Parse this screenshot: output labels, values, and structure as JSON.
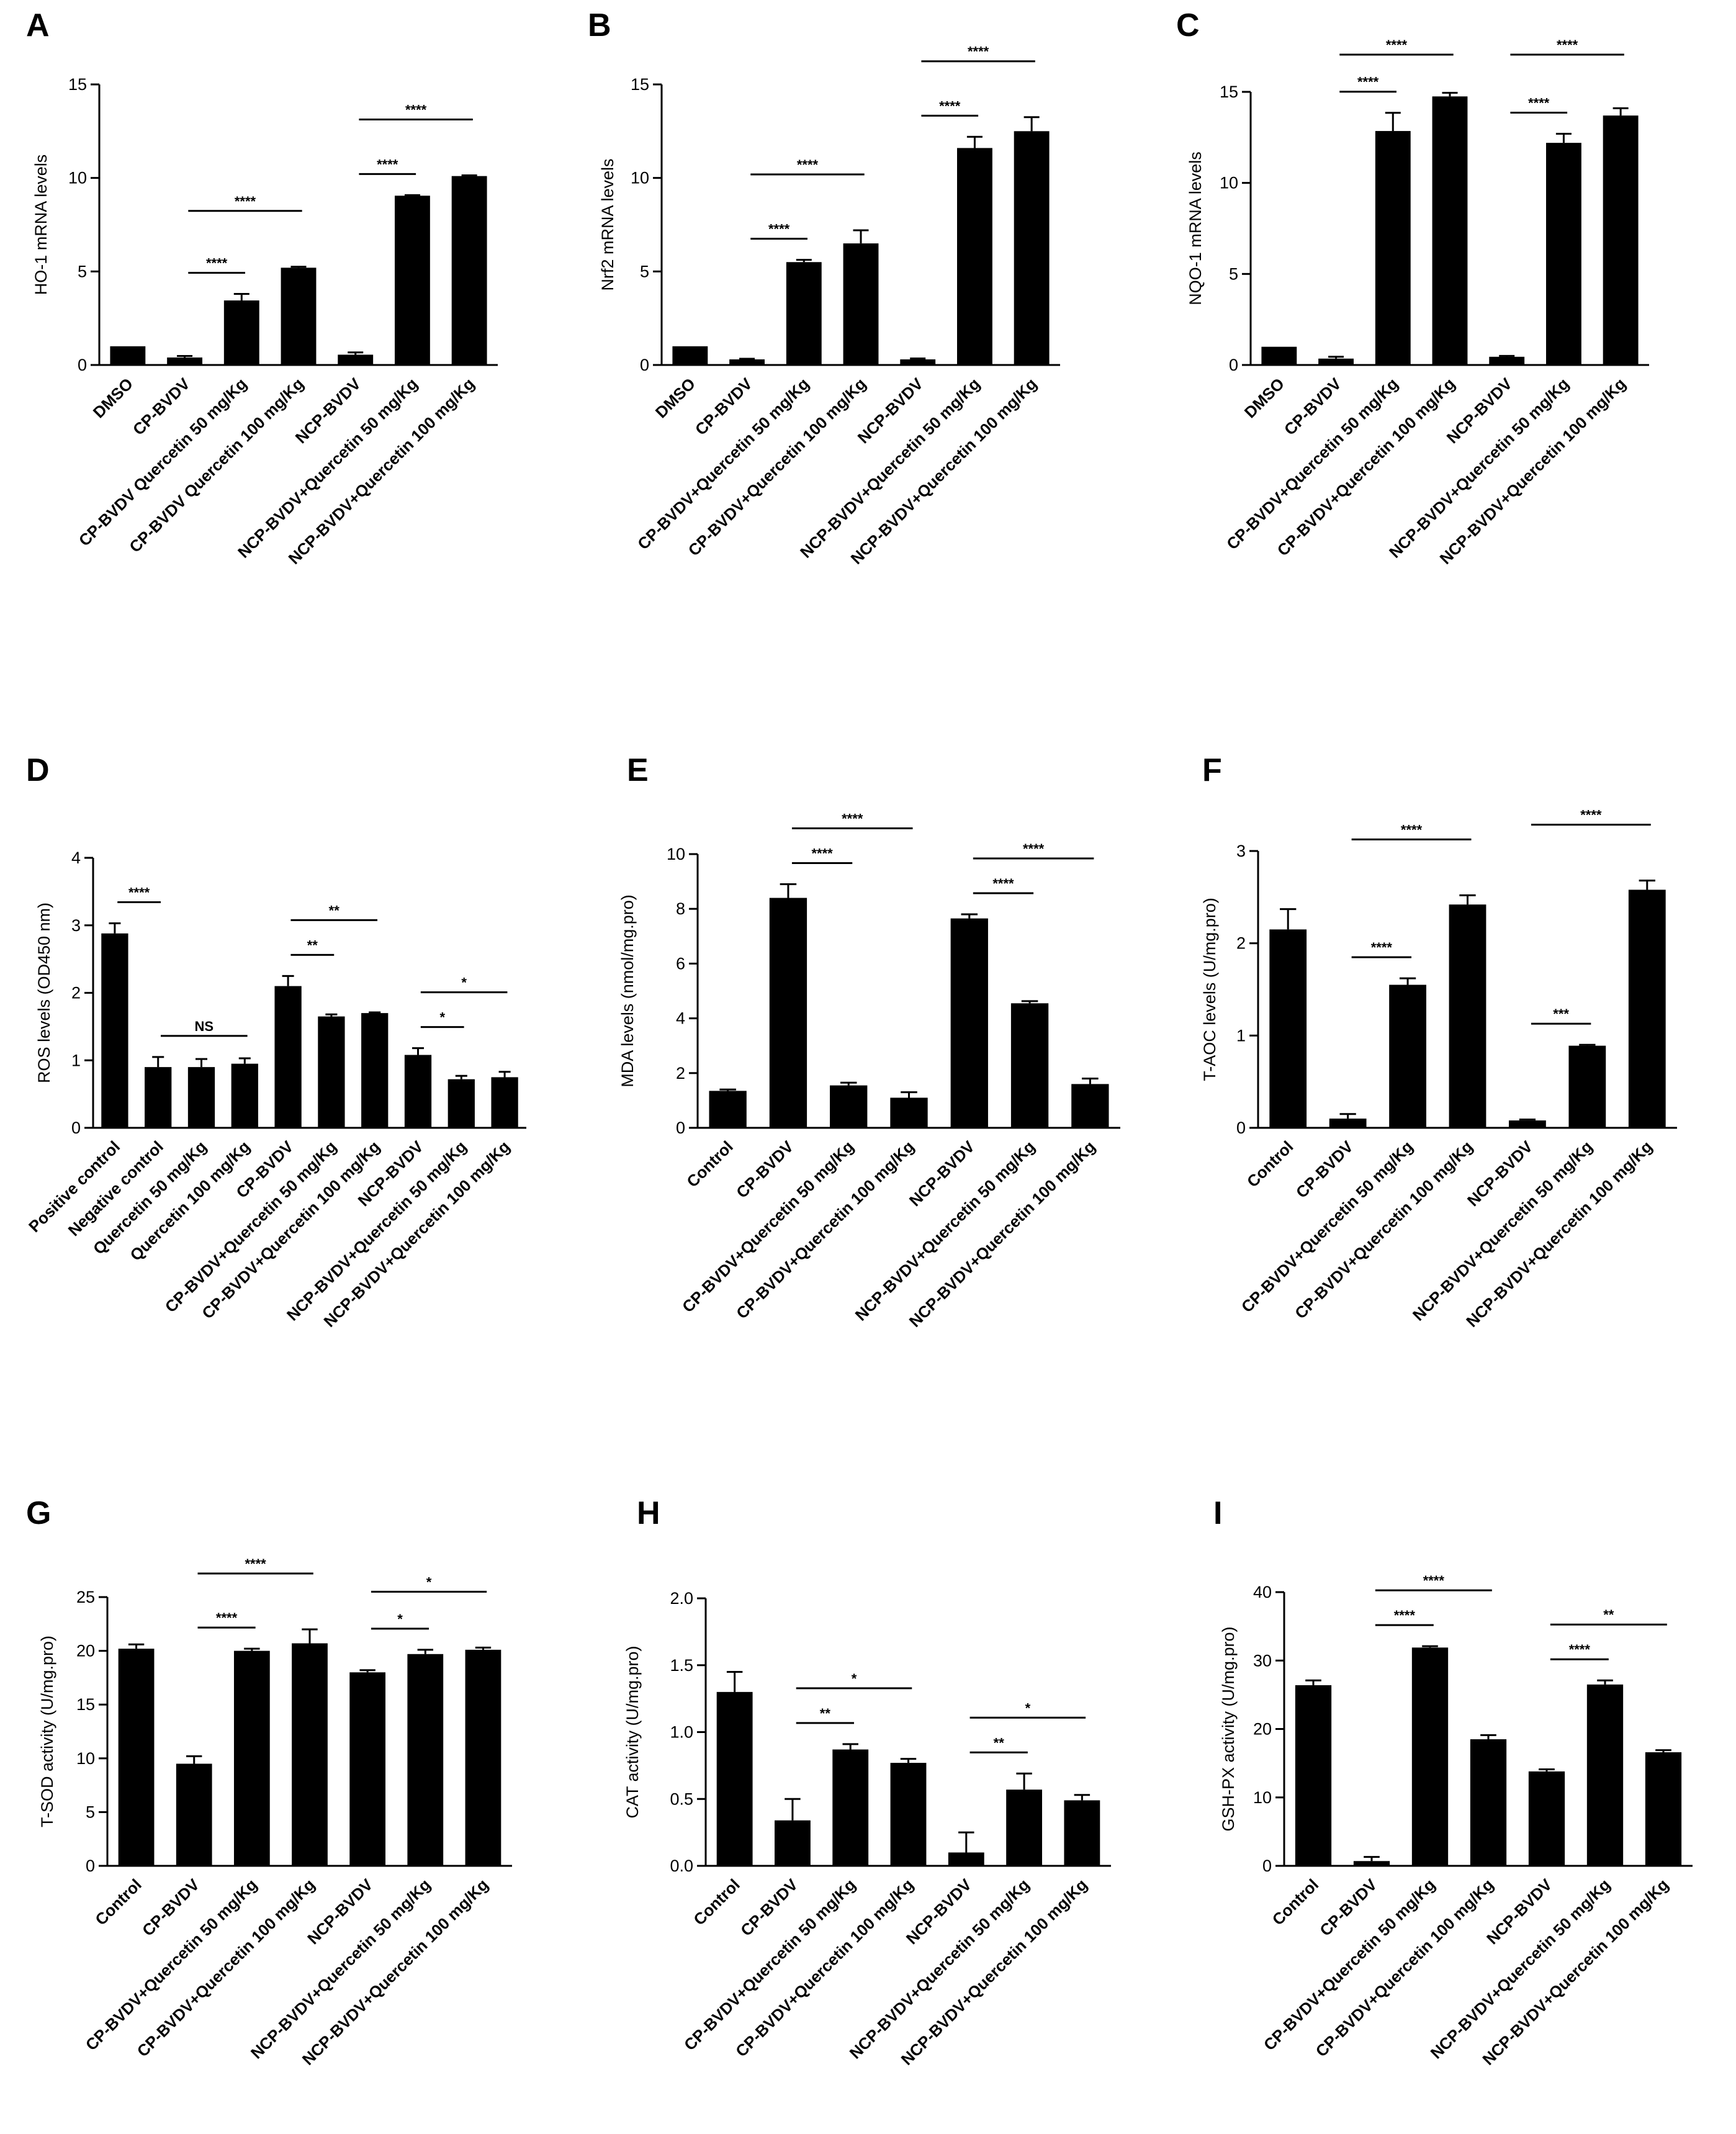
{
  "figure": {
    "panels": [
      {
        "letter": "A"
      },
      {
        "letter": "B"
      },
      {
        "letter": "C"
      },
      {
        "letter": "D"
      },
      {
        "letter": "E"
      },
      {
        "letter": "F"
      },
      {
        "letter": "G"
      },
      {
        "letter": "H"
      },
      {
        "letter": "I"
      }
    ]
  },
  "chart_data": [
    {
      "type": "bar",
      "panel": "A",
      "ylabel": "HO-1 mRNA levels",
      "ylim": [
        0,
        15
      ],
      "yticks": [
        0,
        5,
        10,
        15
      ],
      "categories": [
        "DMSO",
        "CP-BVDV",
        "CP-BVDV Quercetin 50 mg/Kg",
        "CP-BVDV Quercetin 100 mg/Kg",
        "NCP-BVDV",
        "NCP-BVDV+Quercetin 50 mg/Kg",
        "NCP-BVDV+Quercetin 100 mg/Kg"
      ],
      "values": [
        1.0,
        0.4,
        3.45,
        5.2,
        0.55,
        9.05,
        10.1
      ],
      "errors": [
        0.0,
        0.08,
        0.35,
        0.05,
        0.12,
        0.03,
        0.04
      ],
      "significance": [
        {
          "from": 1,
          "to": 2,
          "label": "****"
        },
        {
          "from": 1,
          "to": 3,
          "label": "****"
        },
        {
          "from": 4,
          "to": 5,
          "label": "****"
        },
        {
          "from": 4,
          "to": 6,
          "label": "****"
        }
      ]
    },
    {
      "type": "bar",
      "panel": "B",
      "ylabel": "Nrf2 mRNA levels",
      "ylim": [
        0,
        15
      ],
      "yticks": [
        0,
        5,
        10,
        15
      ],
      "categories": [
        "DMSO",
        "CP-BVDV",
        "CP-BVDV+Quercetin 50 mg/Kg",
        "CP-BVDV+Quercetin 100 mg/Kg",
        "NCP-BVDV",
        "NCP-BVDV+Quercetin 50 mg/Kg",
        "NCP-BVDV+Quercetin 100 mg/Kg"
      ],
      "values": [
        1.0,
        0.3,
        5.5,
        6.5,
        0.3,
        11.6,
        12.5
      ],
      "errors": [
        0.0,
        0.03,
        0.12,
        0.7,
        0.05,
        0.6,
        0.75
      ],
      "significance": [
        {
          "from": 1,
          "to": 2,
          "label": "****"
        },
        {
          "from": 1,
          "to": 3,
          "label": "****"
        },
        {
          "from": 4,
          "to": 5,
          "label": "****"
        },
        {
          "from": 4,
          "to": 6,
          "label": "****"
        }
      ]
    },
    {
      "type": "bar",
      "panel": "C",
      "ylabel": "NQO-1 mRNA levels",
      "ylim": [
        0,
        15
      ],
      "yticks": [
        0,
        5,
        10,
        15
      ],
      "categories": [
        "DMSO",
        "CP-BVDV",
        "CP-BVDV+Quercetin 50 mg/Kg",
        "CP-BVDV+Quercetin 100 mg/Kg",
        "NCP-BVDV",
        "NCP-BVDV+Quercetin 50 mg/Kg",
        "NCP-BVDV+Quercetin 100 mg/Kg"
      ],
      "values": [
        1.0,
        0.35,
        12.85,
        14.75,
        0.45,
        12.2,
        13.7
      ],
      "errors": [
        0.0,
        0.1,
        1.0,
        0.2,
        0.05,
        0.5,
        0.4
      ],
      "significance": [
        {
          "from": 1,
          "to": 2,
          "label": "****"
        },
        {
          "from": 1,
          "to": 3,
          "label": "****"
        },
        {
          "from": 4,
          "to": 5,
          "label": "****"
        },
        {
          "from": 4,
          "to": 6,
          "label": "****"
        }
      ]
    },
    {
      "type": "bar",
      "panel": "D",
      "ylabel": "ROS levels (OD450 nm)",
      "ylim": [
        0,
        4
      ],
      "yticks": [
        0,
        1,
        2,
        3,
        4
      ],
      "categories": [
        "Positive control",
        "Negative control",
        "Quercetin 50 mg/Kg",
        "Quercetin 100 mg/Kg",
        "CP-BVDV",
        "CP-BVDV+Quercetin 50 mg/Kg",
        "CP-BVDV+Quercetin 100 mg/Kg",
        "NCP-BVDV",
        "NCP-BVDV+Quercetin 50 mg/Kg",
        "NCP-BVDV+Quercetin 100 mg/Kg"
      ],
      "values": [
        2.88,
        0.9,
        0.9,
        0.95,
        2.1,
        1.65,
        1.7,
        1.08,
        0.72,
        0.75
      ],
      "errors": [
        0.15,
        0.15,
        0.12,
        0.08,
        0.15,
        0.03,
        0.01,
        0.1,
        0.05,
        0.08
      ],
      "significance": [
        {
          "from": 0,
          "to": 1,
          "label": "****"
        },
        {
          "from": 1,
          "to": 3,
          "label": "NS"
        },
        {
          "from": 4,
          "to": 5,
          "label": "**"
        },
        {
          "from": 4,
          "to": 6,
          "label": "**"
        },
        {
          "from": 7,
          "to": 8,
          "label": "*"
        },
        {
          "from": 7,
          "to": 9,
          "label": "*"
        }
      ]
    },
    {
      "type": "bar",
      "panel": "E",
      "ylabel": "MDA levels (nmol/mg.pro)",
      "ylim": [
        0,
        10
      ],
      "yticks": [
        0,
        2,
        4,
        6,
        8,
        10
      ],
      "categories": [
        "Control",
        "CP-BVDV",
        "CP-BVDV+Quercetin 50 mg/Kg",
        "CP-BVDV+Quercetin 100 mg/Kg",
        "NCP-BVDV",
        "NCP-BVDV+Quercetin 50 mg/Kg",
        "NCP-BVDV+Quercetin 100 mg/Kg"
      ],
      "values": [
        1.35,
        8.4,
        1.55,
        1.1,
        7.65,
        4.55,
        1.6
      ],
      "errors": [
        0.05,
        0.5,
        0.1,
        0.2,
        0.15,
        0.08,
        0.2
      ],
      "significance": [
        {
          "from": 1,
          "to": 2,
          "label": "****"
        },
        {
          "from": 1,
          "to": 3,
          "label": "****"
        },
        {
          "from": 4,
          "to": 5,
          "label": "****"
        },
        {
          "from": 4,
          "to": 6,
          "label": "****"
        }
      ]
    },
    {
      "type": "bar",
      "panel": "F",
      "ylabel": "T-AOC levels (U/mg.pro)",
      "ylim": [
        0,
        3
      ],
      "yticks": [
        0,
        1,
        2,
        3
      ],
      "categories": [
        "Control",
        "CP-BVDV",
        "CP-BVDV+Quercetin 50 mg/Kg",
        "CP-BVDV+Quercetin 100 mg/Kg",
        "NCP-BVDV",
        "NCP-BVDV+Quercetin 50 mg/Kg",
        "NCP-BVDV+Quercetin 100 mg/Kg"
      ],
      "values": [
        2.15,
        0.1,
        1.55,
        2.42,
        0.08,
        0.89,
        2.58
      ],
      "errors": [
        0.22,
        0.05,
        0.07,
        0.1,
        0.01,
        0.01,
        0.1
      ],
      "significance": [
        {
          "from": 1,
          "to": 2,
          "label": "****"
        },
        {
          "from": 1,
          "to": 3,
          "label": "****"
        },
        {
          "from": 4,
          "to": 5,
          "label": "***"
        },
        {
          "from": 4,
          "to": 6,
          "label": "****"
        }
      ]
    },
    {
      "type": "bar",
      "panel": "G",
      "ylabel": "T-SOD activity (U/mg.pro)",
      "ylim": [
        0,
        25
      ],
      "yticks": [
        0,
        5,
        10,
        15,
        20,
        25
      ],
      "categories": [
        "Control",
        "CP-BVDV",
        "CP-BVDV+Quercetin 50 mg/Kg",
        "CP-BVDV+Quercetin 100 mg/Kg",
        "NCP-BVDV",
        "NCP-BVDV+Quercetin 50 mg/Kg",
        "NCP-BVDV+Quercetin 100 mg/Kg"
      ],
      "values": [
        20.2,
        9.5,
        20.0,
        20.7,
        18.0,
        19.7,
        20.1
      ],
      "errors": [
        0.4,
        0.7,
        0.2,
        1.3,
        0.2,
        0.4,
        0.2
      ],
      "significance": [
        {
          "from": 1,
          "to": 2,
          "label": "****"
        },
        {
          "from": 1,
          "to": 3,
          "label": "****"
        },
        {
          "from": 4,
          "to": 5,
          "label": "*"
        },
        {
          "from": 4,
          "to": 6,
          "label": "*"
        }
      ]
    },
    {
      "type": "bar",
      "panel": "H",
      "ylabel": "CAT activity (U/mg.pro)",
      "ylim": [
        0,
        2
      ],
      "yticks": [
        "0.0",
        "0.5",
        "1.0",
        "1.5",
        "2.0"
      ],
      "categories": [
        "Control",
        "CP-BVDV",
        "CP-BVDV+Quercetin 50 mg/Kg",
        "CP-BVDV+Quercetin 100 mg/Kg",
        "NCP-BVDV",
        "NCP-BVDV+Quercetin 50 mg/Kg",
        "NCP-BVDV+Quercetin 100 mg/Kg"
      ],
      "values": [
        1.3,
        0.34,
        0.87,
        0.77,
        0.1,
        0.57,
        0.49
      ],
      "errors": [
        0.15,
        0.16,
        0.04,
        0.03,
        0.15,
        0.12,
        0.04
      ],
      "significance": [
        {
          "from": 1,
          "to": 2,
          "label": "**"
        },
        {
          "from": 1,
          "to": 3,
          "label": "*"
        },
        {
          "from": 4,
          "to": 5,
          "label": "**"
        },
        {
          "from": 4,
          "to": 6,
          "label": "*"
        }
      ]
    },
    {
      "type": "bar",
      "panel": "I",
      "ylabel": "GSH-PX activity (U/mg.pro)",
      "ylim": [
        0,
        40
      ],
      "yticks": [
        0,
        10,
        20,
        30,
        40
      ],
      "categories": [
        "Control",
        "CP-BVDV",
        "CP-BVDV+Quercetin 50 mg/Kg",
        "CP-BVDV+Quercetin 100 mg/Kg",
        "NCP-BVDV",
        "NCP-BVDV+Quercetin 50 mg/Kg",
        "NCP-BVDV+Quercetin 100 mg/Kg"
      ],
      "values": [
        26.4,
        0.7,
        31.9,
        18.5,
        13.8,
        26.5,
        16.6
      ],
      "errors": [
        0.7,
        0.6,
        0.2,
        0.6,
        0.3,
        0.6,
        0.3
      ],
      "significance": [
        {
          "from": 1,
          "to": 2,
          "label": "****"
        },
        {
          "from": 1,
          "to": 3,
          "label": "****"
        },
        {
          "from": 4,
          "to": 5,
          "label": "****"
        },
        {
          "from": 4,
          "to": 6,
          "label": "**"
        }
      ]
    }
  ]
}
